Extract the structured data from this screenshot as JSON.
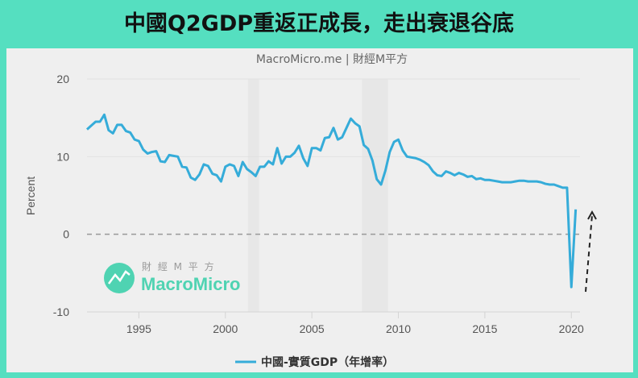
{
  "header": {
    "title": "中國Q2GDP重返正成長，走出衰退谷底"
  },
  "watermark": {
    "cn": "財 經 M 平 方",
    "en": "MacroMicro"
  },
  "colors": {
    "background": "#55dfc0",
    "panel": "#efefef",
    "series": "#35acd9",
    "zero_line": "#999999",
    "arrow": "#222222",
    "recession_shading": "#e7e7e7"
  },
  "chart_data": {
    "type": "line",
    "source": "MacroMicro.me | 財經M平方",
    "ylabel": "Percent",
    "xlabel": "",
    "ylim": [
      -10,
      20
    ],
    "xlim": [
      1992,
      2020.5
    ],
    "yticks": [
      "20",
      "10",
      "0",
      "-10"
    ],
    "ytick_values": [
      20,
      10,
      0,
      -10
    ],
    "xticks": [
      "1995",
      "2000",
      "2005",
      "2010",
      "2015",
      "2020"
    ],
    "xtick_values": [
      1995,
      2000,
      2005,
      2010,
      2015,
      2020
    ],
    "grid": "horizontal",
    "zero_line": "dashed",
    "shaded_periods": [
      [
        2001.3,
        2001.95
      ],
      [
        2007.9,
        2009.4
      ]
    ],
    "annotation": "dashed upward arrow near 2020",
    "legend_position": "bottom",
    "series": [
      {
        "name": "中國-實質GDP（年增率）",
        "frequency": "quarterly",
        "start": "1992Q1",
        "values": [
          13.5,
          14.0,
          14.5,
          14.5,
          15.4,
          13.4,
          13.0,
          14.1,
          14.1,
          13.3,
          13.1,
          12.2,
          12.0,
          10.9,
          10.4,
          10.6,
          10.7,
          9.4,
          9.3,
          10.2,
          10.1,
          10.0,
          8.7,
          8.6,
          7.3,
          7.0,
          7.7,
          9.0,
          8.8,
          7.8,
          7.6,
          6.8,
          8.7,
          9.0,
          8.8,
          7.5,
          9.3,
          8.4,
          8.0,
          7.5,
          8.7,
          8.7,
          9.4,
          9.0,
          11.1,
          9.1,
          10.0,
          10.0,
          10.5,
          11.4,
          9.8,
          8.8,
          11.1,
          11.1,
          10.8,
          12.4,
          12.5,
          13.7,
          12.2,
          12.5,
          13.7,
          14.9,
          14.3,
          13.9,
          11.5,
          11.0,
          9.5,
          7.1,
          6.4,
          8.2,
          10.6,
          11.9,
          12.2,
          10.8,
          10.0,
          9.9,
          9.8,
          9.6,
          9.3,
          8.9,
          8.1,
          7.6,
          7.5,
          8.1,
          7.9,
          7.6,
          7.9,
          7.7,
          7.4,
          7.5,
          7.1,
          7.2,
          7.0,
          7.0,
          6.9,
          6.8,
          6.7,
          6.7,
          6.7,
          6.8,
          6.9,
          6.9,
          6.8,
          6.8,
          6.8,
          6.7,
          6.5,
          6.4,
          6.4,
          6.2,
          6.0,
          6.0,
          -6.8,
          3.2
        ]
      }
    ]
  }
}
